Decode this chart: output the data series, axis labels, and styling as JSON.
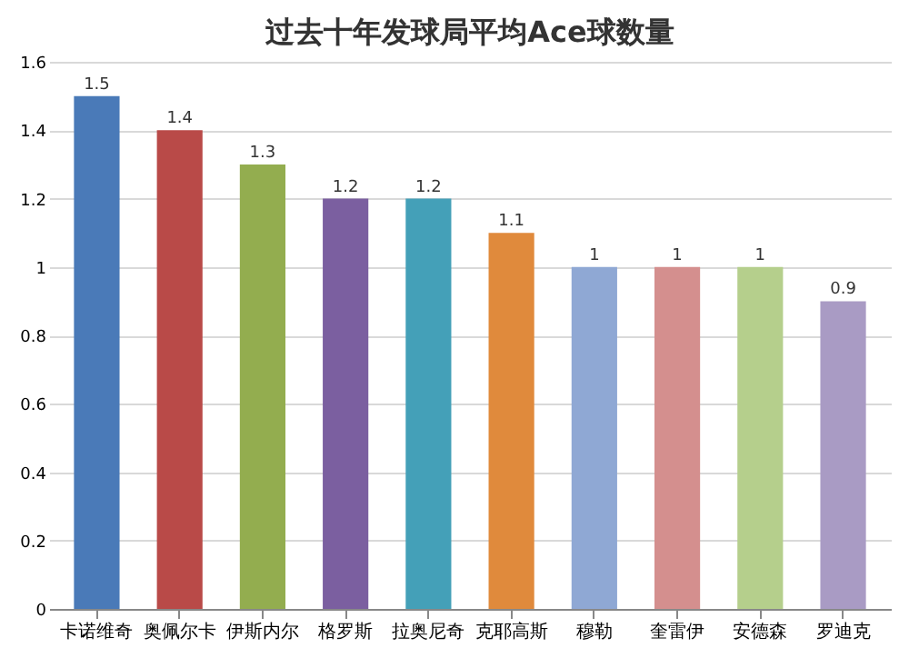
{
  "chart_data": {
    "type": "bar",
    "title": "过去十年发球局平均Ace球数量",
    "categories": [
      "卡诺维奇",
      "奥佩尔卡",
      "伊斯内尔",
      "格罗斯",
      "拉奥尼奇",
      "克耶高斯",
      "穆勒",
      "奎雷伊",
      "安德森",
      "罗迪克"
    ],
    "values": [
      1.5,
      1.4,
      1.3,
      1.2,
      1.2,
      1.1,
      1,
      1,
      1,
      0.9
    ],
    "colors": [
      "#4a7ab8",
      "#b94a48",
      "#93ad4f",
      "#7b5fa0",
      "#44a0b8",
      "#e08a3c",
      "#8fa8d4",
      "#d48f8e",
      "#b5cf8c",
      "#a99bc4"
    ],
    "ylim": [
      0,
      1.6
    ],
    "yticks": [
      0,
      0.2,
      0.4,
      0.6,
      0.8,
      1,
      1.2,
      1.4,
      1.6
    ],
    "grid": "y",
    "data_labels": true
  }
}
